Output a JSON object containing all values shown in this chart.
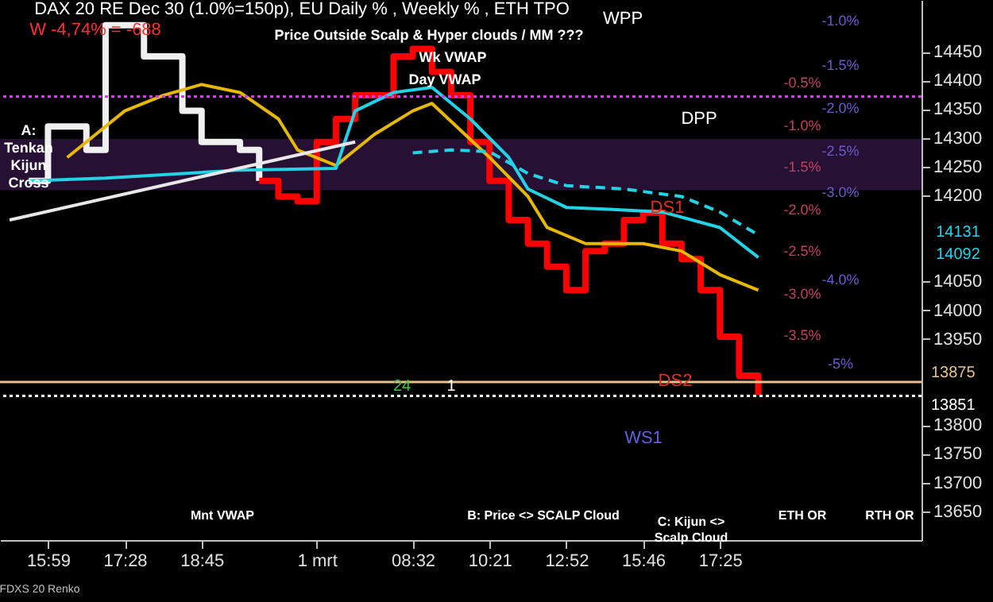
{
  "chart_data": {
    "type": "line",
    "title": "DAX 20 RE Dec 30 (1.0%=150p), EU Daily % , Weekly % , ETH TPO",
    "subtitle": "W -4,74% = -688",
    "categories": [
      null,
      null,
      "15:59",
      null,
      null,
      null,
      "17:28",
      null,
      null,
      null,
      "18:45",
      null,
      null,
      null,
      null,
      null,
      "1 mrt",
      null,
      null,
      null,
      null,
      "08:32",
      null,
      null,
      null,
      "10:21",
      null,
      null,
      null,
      "12:52",
      null,
      null,
      null,
      "15:46",
      null,
      null,
      null,
      "17:25",
      null,
      null,
      null,
      null,
      null,
      null,
      null,
      null,
      null,
      null
    ],
    "ylim": [
      13600,
      14540
    ],
    "yticks": [
      13650,
      13700,
      13750,
      13800,
      13950,
      14000,
      14050,
      14200,
      14250,
      14300,
      14350,
      14400,
      14450
    ],
    "grid": false,
    "marker": "none",
    "series": [
      {
        "type": "step",
        "color": "#f0f0f0",
        "values": [
          null,
          14225,
          14320,
          null,
          14279,
          14496,
          null,
          14442,
          null,
          14347,
          14293,
          14293,
          14279,
          14225,
          null,
          null,
          null,
          null,
          null,
          null,
          null,
          null,
          null,
          null,
          null,
          null,
          null,
          null,
          null,
          null,
          null,
          null,
          null,
          null,
          null,
          null,
          null,
          null,
          null,
          null,
          null,
          null,
          null,
          null,
          null,
          null,
          null,
          null
        ]
      },
      {
        "type": "step",
        "color": "#ff0000",
        "values": [
          null,
          null,
          null,
          null,
          null,
          null,
          null,
          null,
          null,
          null,
          null,
          null,
          null,
          14225,
          14198,
          14190,
          14293,
          14333,
          14374,
          14374,
          14442,
          14455,
          14415,
          14374,
          14293,
          14225,
          14157,
          14116,
          14076,
          14035,
          14103,
          14116,
          14157,
          14170,
          14116,
          14089,
          14035,
          13954,
          13886,
          13853,
          null,
          null,
          null,
          null,
          null,
          null,
          null,
          null
        ]
      },
      {
        "color": "#e6b800",
        "values": [
          null,
          null,
          null,
          14266,
          null,
          null,
          14347,
          null,
          14374,
          null,
          14393,
          null,
          14379,
          null,
          14333,
          14279,
          null,
          14252,
          14279,
          14306,
          null,
          14347,
          14360,
          null,
          null,
          14266,
          null,
          14198,
          14144,
          null,
          14116,
          null,
          14116,
          14116,
          null,
          14103,
          null,
          14062,
          null,
          14035,
          null,
          null,
          null,
          null,
          null,
          null,
          null,
          null
        ]
      },
      {
        "color": "#22d3e6",
        "values": [
          null,
          14225,
          null,
          null,
          null,
          14230,
          null,
          null,
          null,
          null,
          null,
          null,
          14244,
          null,
          null,
          null,
          null,
          14247,
          14347,
          null,
          14379,
          null,
          14388,
          null,
          14333,
          null,
          14266,
          14211,
          null,
          14179,
          null,
          14176,
          null,
          null,
          14171,
          null,
          null,
          14144,
          null,
          14092,
          null,
          null,
          null,
          null,
          null,
          null,
          null,
          null
        ]
      },
      {
        "line_style": "dashed",
        "color": "#22d3e6",
        "values": [
          null,
          null,
          null,
          null,
          null,
          null,
          null,
          null,
          null,
          null,
          null,
          null,
          null,
          null,
          null,
          null,
          null,
          null,
          null,
          null,
          null,
          14274,
          null,
          14279,
          null,
          14276,
          null,
          14238,
          null,
          14217,
          null,
          null,
          14211,
          null,
          null,
          14198,
          null,
          14171,
          null,
          14131,
          null,
          null,
          null,
          null,
          null,
          null,
          null,
          null
        ]
      },
      {
        "color": "#e8e8e8",
        "values": [
          14157,
          null,
          null,
          null,
          null,
          null,
          null,
          null,
          null,
          null,
          null,
          null,
          null,
          null,
          null,
          null,
          null,
          null,
          14293,
          null,
          null,
          null,
          null,
          null,
          null,
          null,
          null,
          null,
          null,
          null,
          null,
          null,
          null,
          null,
          null,
          null,
          null,
          null,
          null,
          null,
          null,
          null,
          null,
          null,
          null,
          null,
          null,
          null
        ]
      }
    ],
    "bands": [
      {
        "axis": "y",
        "from": 14209,
        "to": 14298,
        "color": "#2a1238"
      }
    ],
    "ref_lines": [
      {
        "axis": "y",
        "value": 13875,
        "label": "13875",
        "color": "#e6c08f"
      },
      {
        "axis": "y",
        "value": 13851,
        "label": "13851",
        "color": "#ffffff",
        "line_style": "dotted"
      },
      {
        "axis": "y",
        "value": 14372,
        "color": "#d040e0",
        "line_style": "dotted"
      }
    ],
    "annotations": [
      "WPP",
      "DPP",
      "DS1",
      "DS2",
      "WS1",
      "-1.0%",
      "-1.5%",
      "-2.0%",
      "-2.5%",
      "-3.0%",
      "-4.0%",
      "-5%",
      "-0.5%",
      "-1.0%",
      "-1.5%",
      "-2.0%",
      "-2.5%",
      "-3.0%",
      "-3.5%",
      "A: Tenkan Kijun Cross",
      "Price Outside Scalp & Hyper clouds / MM ???",
      "Wk VWAP",
      "Day VWAP",
      "Mnt VWAP",
      "B: Price <> SCALP Cloud",
      "C: Kijun <> Scalp Cloud",
      "ETH OR",
      "RTH OR",
      "24",
      "1",
      "FDXS 20 Renko",
      "14131",
      "14092"
    ]
  }
}
